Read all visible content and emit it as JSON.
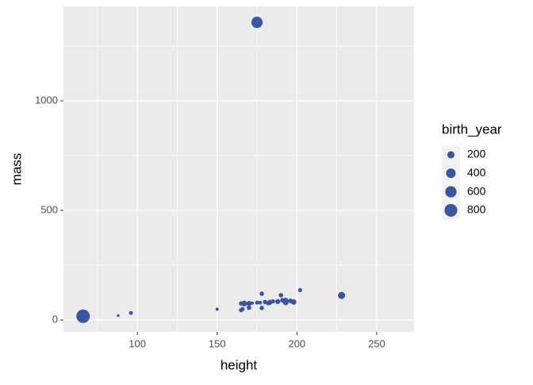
{
  "chart_data": {
    "type": "scatter",
    "x_label": "height",
    "y_label": "mass",
    "size_label": "birth_year",
    "color": "#3a56a3",
    "x": [
      66,
      88,
      96,
      150,
      175,
      228,
      172,
      167,
      202,
      178,
      165,
      183,
      182,
      188,
      180,
      170,
      170,
      183,
      177,
      180,
      193,
      165,
      193,
      188,
      198,
      170,
      166,
      183,
      190,
      175,
      178,
      191,
      196,
      185
    ],
    "y": [
      17,
      20,
      32,
      49,
      1358,
      112,
      77,
      75,
      136,
      120,
      75,
      84,
      77,
      84,
      80,
      77,
      75,
      78,
      79,
      83,
      89,
      45,
      80,
      84,
      82,
      56,
      50,
      79,
      113,
      79,
      55,
      90,
      87,
      85
    ],
    "size": [
      896,
      8,
      33,
      19,
      600,
      200,
      19,
      112,
      42,
      52,
      47,
      24,
      57,
      42,
      29,
      21,
      82,
      32,
      31,
      41,
      92,
      46,
      102,
      72,
      92,
      58,
      40,
      66,
      53,
      37,
      48,
      62,
      60,
      45
    ],
    "legend_values": [
      200,
      400,
      600,
      800
    ],
    "xlim": [
      53.7,
      273.4
    ],
    "ylim": [
      -54,
      1431
    ],
    "xticks": [
      100,
      150,
      200,
      250
    ],
    "yticks": [
      0,
      500,
      1000
    ],
    "x_minor_ticks": [
      75,
      125,
      175,
      225
    ],
    "y_minor_ticks": [
      250,
      750,
      1250
    ],
    "grid": true
  }
}
